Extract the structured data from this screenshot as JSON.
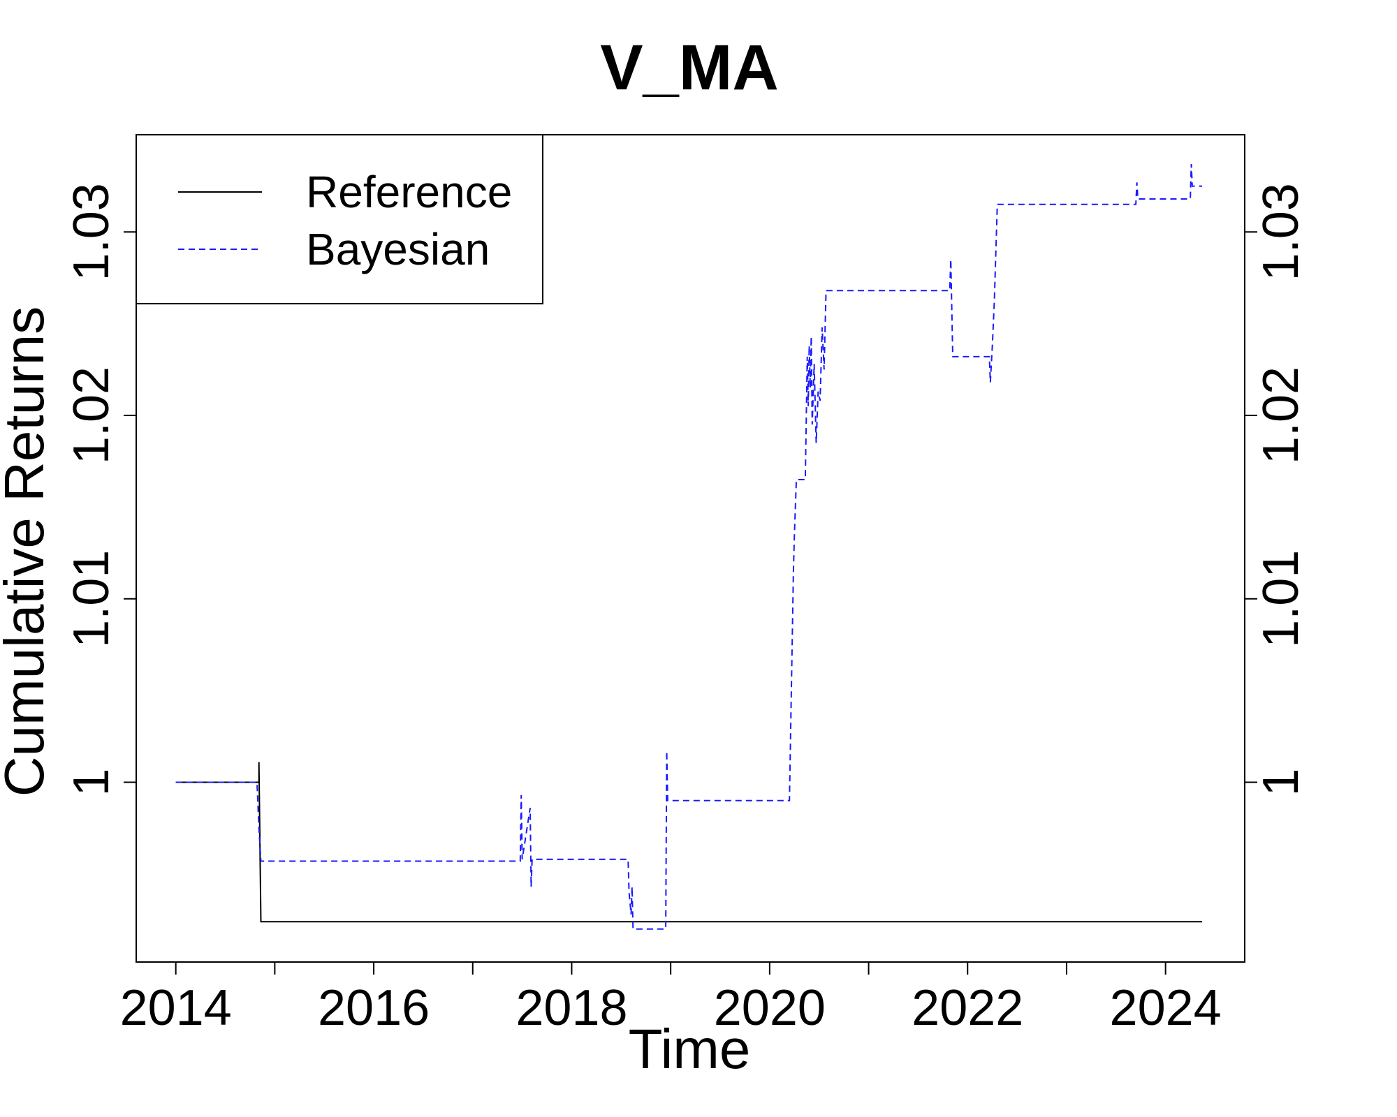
{
  "chart_data": {
    "type": "line",
    "title": "V_MA",
    "xlabel": "Time",
    "ylabel": "Cumulative Returns",
    "xlim": [
      2013.6,
      2024.8
    ],
    "ylim": [
      0.9902,
      1.0353
    ],
    "x_ticks": [
      2014,
      2015,
      2016,
      2017,
      2018,
      2019,
      2020,
      2021,
      2022,
      2023,
      2024
    ],
    "x_tick_labels": [
      {
        "x": 2014,
        "label": "2014"
      },
      {
        "x": 2016,
        "label": "2016"
      },
      {
        "x": 2018,
        "label": "2018"
      },
      {
        "x": 2020,
        "label": "2020"
      },
      {
        "x": 2022,
        "label": "2022"
      },
      {
        "x": 2024,
        "label": "2024"
      }
    ],
    "y_ticks": [
      {
        "y": 1.0,
        "label": "1"
      },
      {
        "y": 1.01,
        "label": "1.01"
      },
      {
        "y": 1.02,
        "label": "1.02"
      },
      {
        "y": 1.03,
        "label": "1.03"
      }
    ],
    "legend": {
      "position": "top-left"
    },
    "series": [
      {
        "name": "Reference",
        "color": "#000000",
        "dash": "solid",
        "x": [
          2014.0,
          2014.84,
          2014.84,
          2014.86,
          2024.37
        ],
        "y": [
          1.0,
          1.0,
          1.0011,
          0.9924,
          0.9924
        ]
      },
      {
        "name": "Bayesian",
        "color": "#1a1aff",
        "dash": "dashed",
        "x": [
          2014.0,
          2014.82,
          2014.84,
          2014.86,
          2017.48,
          2017.49,
          2017.5,
          2017.58,
          2017.59,
          2017.6,
          2018.57,
          2018.58,
          2018.6,
          2018.61,
          2018.62,
          2018.95,
          2018.96,
          2018.97,
          2020.2,
          2020.24,
          2020.25,
          2020.27,
          2020.36,
          2020.38,
          2020.39,
          2020.4,
          2020.41,
          2020.42,
          2020.43,
          2020.45,
          2020.47,
          2020.49,
          2020.51,
          2020.53,
          2020.55,
          2020.57,
          2020.58,
          2021.82,
          2021.83,
          2021.85,
          2022.22,
          2022.23,
          2022.25,
          2022.27,
          2022.3,
          2023.7,
          2023.71,
          2023.72,
          2024.25,
          2024.26,
          2024.27,
          2024.37
        ],
        "y": [
          1.0,
          1.0,
          0.9975,
          0.9957,
          0.9957,
          0.9993,
          0.9958,
          0.9986,
          0.9943,
          0.9958,
          0.9958,
          0.994,
          0.9928,
          0.9943,
          0.992,
          0.992,
          1.0017,
          0.999,
          0.999,
          1.0115,
          1.0135,
          1.0165,
          1.0165,
          1.0232,
          1.0205,
          1.0238,
          1.0215,
          1.0243,
          1.0195,
          1.0228,
          1.0185,
          1.0213,
          1.0208,
          1.0248,
          1.0225,
          1.0268,
          1.0268,
          1.0268,
          1.0285,
          1.0232,
          1.0232,
          1.0218,
          1.0238,
          1.0262,
          1.0315,
          1.0315,
          1.0327,
          1.0318,
          1.0318,
          1.0337,
          1.0325,
          1.0325
        ]
      }
    ]
  }
}
